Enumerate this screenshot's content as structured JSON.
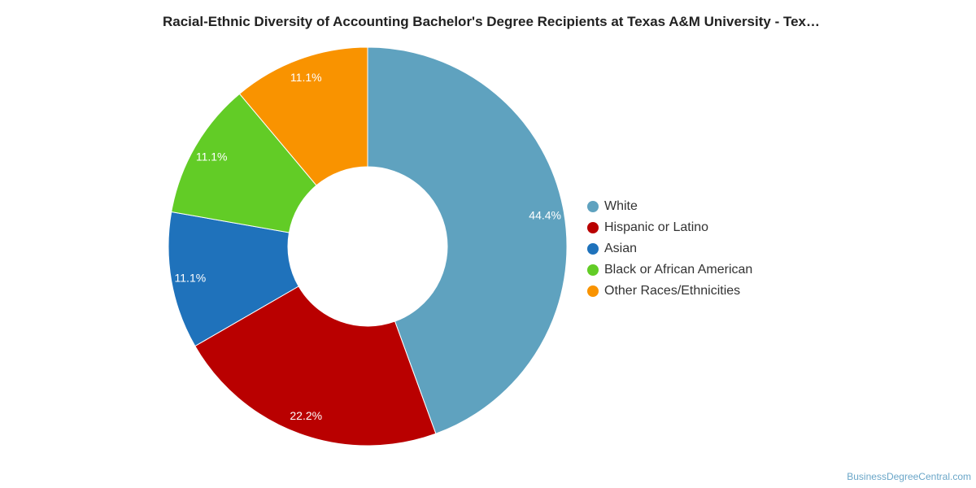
{
  "chart_data": {
    "type": "pie",
    "title": "Racial-Ethnic Diversity of Accounting Bachelor's Degree Recipients at Texas A&M University - Tex…",
    "donut": true,
    "legend_position": "right",
    "categories": [
      "White",
      "Hispanic or Latino",
      "Asian",
      "Black or African American",
      "Other Races/Ethnicities"
    ],
    "values": [
      44.4,
      22.2,
      11.1,
      11.1,
      11.1
    ],
    "labels": [
      "44.4%",
      "22.2%",
      "11.1%",
      "11.1%",
      "11.1%"
    ],
    "colors": [
      "#5fa2bf",
      "#b90000",
      "#1f72bb",
      "#62cc26",
      "#f99300"
    ]
  },
  "watermark": "BusinessDegreeCentral.com"
}
